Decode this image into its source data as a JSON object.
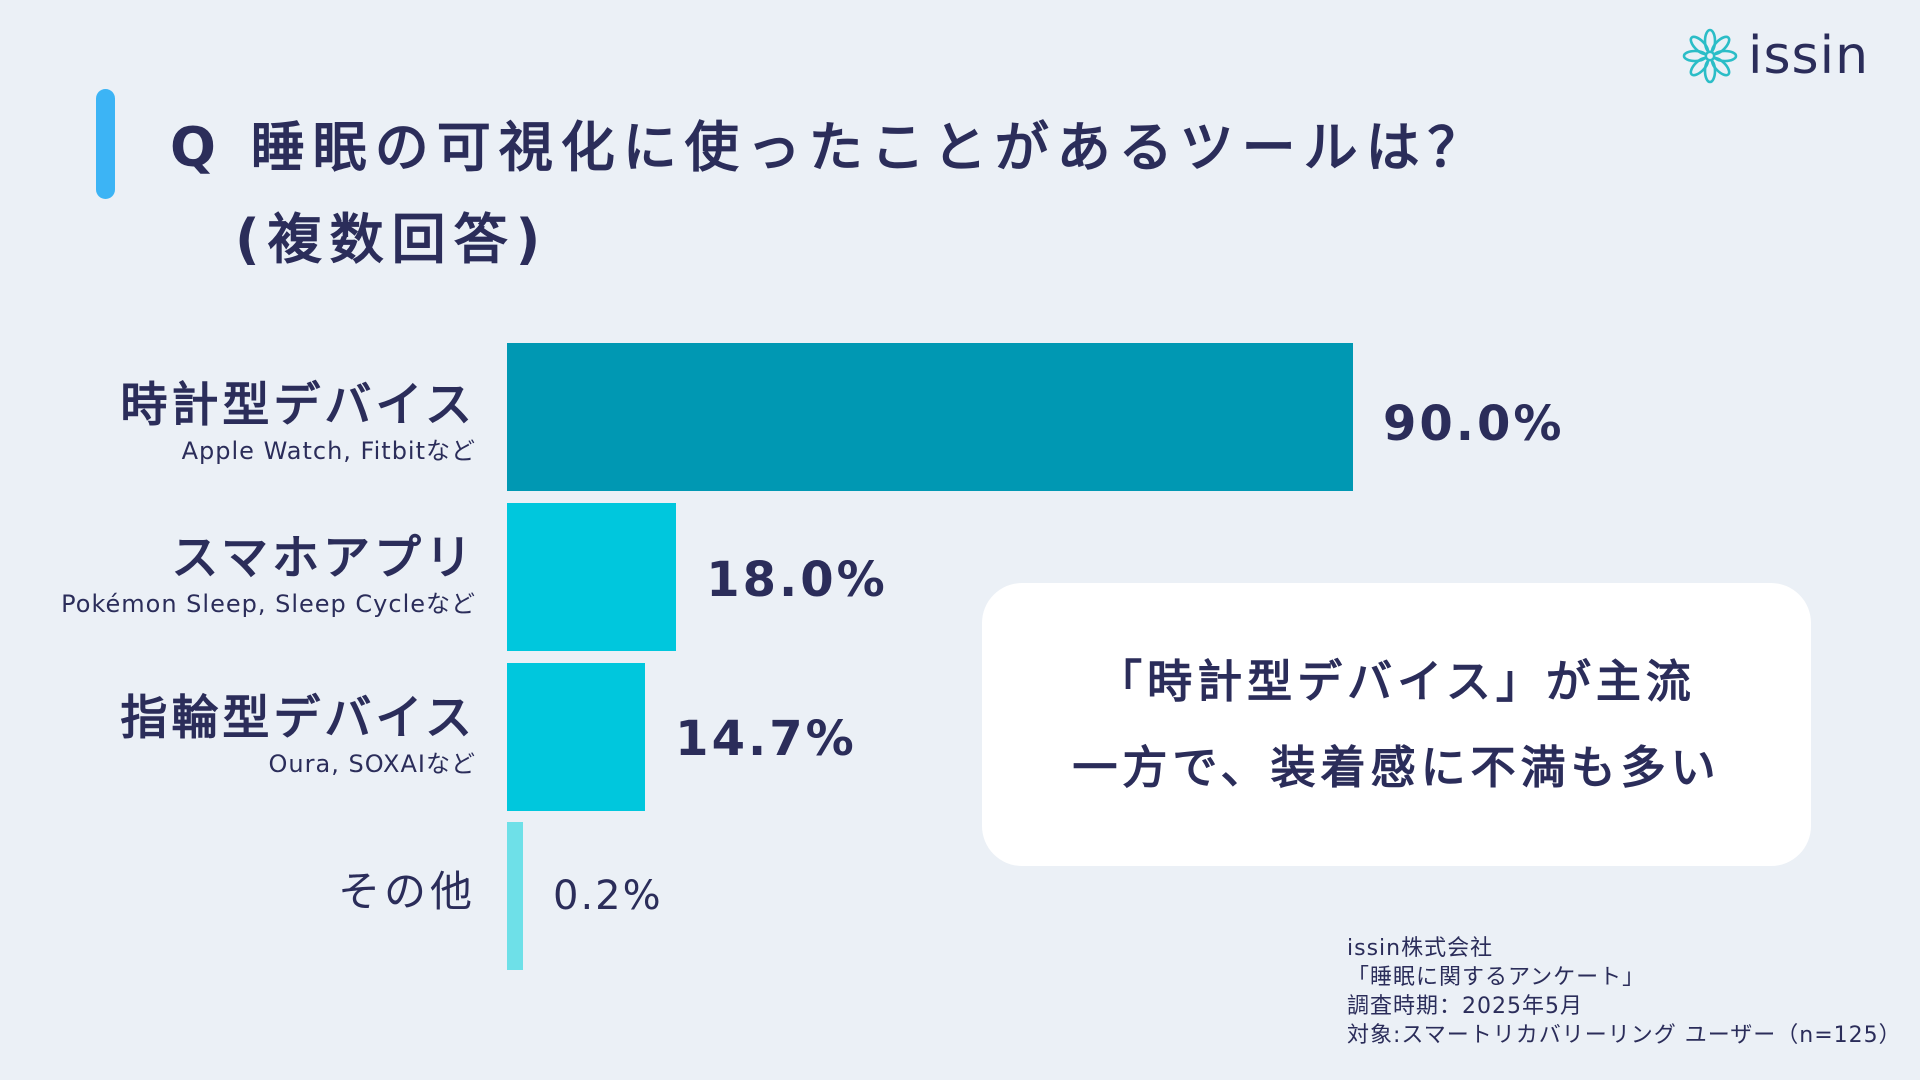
{
  "title": {
    "line1": "Q 睡眠の可視化に使ったことがあるツールは？",
    "line2": "(複数回答)"
  },
  "logo": {
    "text": "issin",
    "icon": "flower-icon"
  },
  "chart_data": {
    "type": "bar",
    "orientation": "horizontal",
    "title": "Q 睡眠の可視化に使ったことがあるツールは？ (複数回答)",
    "categories": [
      "時計型デバイス",
      "スマホアプリ",
      "指輪型デバイス",
      "その他"
    ],
    "category_notes": [
      "Apple Watch, Fitbitなど",
      "Pokémon Sleep, Sleep Cycleなど",
      "Oura, SOXAIなど",
      ""
    ],
    "values": [
      90.0,
      18.0,
      14.7,
      0.2
    ],
    "value_labels": [
      "90.0%",
      "18.0%",
      "14.7%",
      "0.2%"
    ],
    "unit": "%",
    "xlim": [
      0,
      100
    ],
    "colors": [
      "#0098b3",
      "#00c7dd",
      "#00c7dd",
      "#6ee0e8"
    ],
    "grid": false,
    "legend": "none"
  },
  "callout": {
    "line1": "「時計型デバイス」が主流",
    "line2": "一方で、装着感に不満も多い"
  },
  "source": {
    "company": "issin株式会社",
    "survey": "「睡眠に関するアンケート」",
    "period": "調査時期：2025年5月",
    "target": "対象:スマートリカバリーリング ユーザー（n=125）"
  }
}
